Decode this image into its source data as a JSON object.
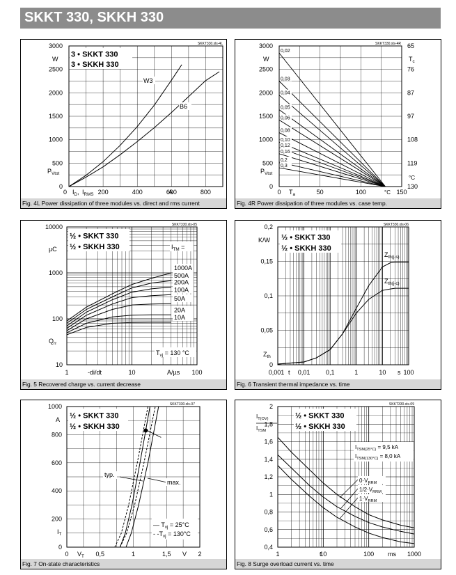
{
  "page_title": "SKKT 330, SKKH 330",
  "chart_data": [
    {
      "id": "fig4L",
      "type": "line",
      "caption": "Fig. 4L Power dissipation of three modules vs. direct and rms current",
      "file_tag": "SKKT330.xls-4L",
      "legend": [
        "3 • SKKT 330",
        "3 • SKKH 330"
      ],
      "xlim": [
        0,
        900
      ],
      "ylim": [
        0,
        3000
      ],
      "x_ticks": [
        "0",
        "200",
        "400",
        "600",
        "800"
      ],
      "y_ticks": [
        "0",
        "500",
        "1000",
        "1500",
        "2000",
        "2500",
        "3000"
      ],
      "y_unit": "W",
      "x_unit": "A",
      "ylabel_main": "P",
      "ylabel_sub": "Vtot",
      "xlabel_a": "I",
      "xlabel_a_sub": "D",
      "xlabel_sep": ",",
      "xlabel_b": "I",
      "xlabel_b_sub": "RMS",
      "series": [
        {
          "name": "W3",
          "x": [
            0,
            100,
            200,
            300,
            400,
            500,
            600,
            660
          ],
          "y": [
            0,
            240,
            530,
            880,
            1280,
            1740,
            2270,
            2600
          ]
        },
        {
          "name": "B6",
          "x": [
            0,
            100,
            200,
            300,
            400,
            500,
            600,
            700,
            800,
            880
          ],
          "y": [
            0,
            200,
            420,
            680,
            960,
            1260,
            1580,
            1920,
            2260,
            2450
          ]
        }
      ]
    },
    {
      "id": "fig4R",
      "type": "line",
      "caption": "Fig. 4R Power dissipation of three modules vs. case temp.",
      "file_tag": "SKKT330.xls-4R",
      "xlim": [
        0,
        150
      ],
      "ylim": [
        0,
        3000
      ],
      "x_ticks": [
        "0",
        "50",
        "100",
        "150"
      ],
      "y_ticks": [
        "0",
        "500",
        "1000",
        "1500",
        "2000",
        "2500",
        "3000"
      ],
      "y_unit": "W",
      "x_unit": "°C",
      "ylabel_main": "P",
      "ylabel_sub": "Vtot",
      "xlabel_main": "T",
      "xlabel_sub": "a",
      "right_axis_label": "T",
      "right_axis_label_sub": "c",
      "right_axis_ticks": [
        "130",
        "119",
        "108",
        "97",
        "87",
        "76",
        "65"
      ],
      "right_axis_unit": "°C",
      "rth_labels": [
        "0,02",
        "0,03",
        "0,04",
        "0,05",
        "0,06",
        "0,08",
        "0,10",
        "0,12",
        "0,16",
        "0,2",
        "0,3"
      ],
      "rth_y": [
        2850,
        2250,
        1950,
        1640,
        1420,
        1150,
        950,
        830,
        700,
        520,
        400
      ],
      "converge": {
        "x": 130,
        "y": 0
      }
    },
    {
      "id": "fig5",
      "type": "line",
      "caption": "Fig. 5 Recovered charge vs. current decrease",
      "file_tag": "SKKT330.xls-05",
      "legend": [
        "½ • SKKT 330",
        "½ • SKKH 330"
      ],
      "xscale": "log",
      "yscale": "log",
      "xlim": [
        1,
        100
      ],
      "ylim": [
        10,
        10000
      ],
      "x_ticks": [
        "1",
        "10",
        "100"
      ],
      "y_ticks": [
        "10",
        "100",
        "1000",
        "10000"
      ],
      "y_unit": "µC",
      "x_unit": "A/µs",
      "xlabel": "-di",
      "xlabel_tail": "/dt",
      "ylabel_main": "Q",
      "ylabel_sub": "rr",
      "series_title": "I",
      "series_title_sub": "TM",
      "series_title_tail": " =",
      "condition_main": "T",
      "condition_sub": "vj",
      "condition_tail": " = 130 °C",
      "series": [
        {
          "name": "1000A",
          "x": [
            1,
            2,
            5,
            10,
            20,
            40
          ],
          "y": [
            90,
            180,
            350,
            560,
            760,
            1000
          ]
        },
        {
          "name": "500A",
          "x": [
            1,
            2,
            5,
            10,
            20,
            40
          ],
          "y": [
            80,
            160,
            300,
            470,
            600,
            680
          ]
        },
        {
          "name": "200A",
          "x": [
            1,
            2,
            5,
            10,
            20,
            40
          ],
          "y": [
            70,
            140,
            260,
            380,
            450,
            490
          ]
        },
        {
          "name": "100A",
          "x": [
            1,
            2,
            5,
            10,
            20,
            40
          ],
          "y": [
            62,
            120,
            210,
            290,
            320,
            335
          ]
        },
        {
          "name": "50A",
          "x": [
            1,
            2,
            5,
            10,
            20,
            40
          ],
          "y": [
            55,
            100,
            160,
            200,
            210,
            215
          ]
        },
        {
          "name": "20A",
          "x": [
            1,
            2,
            5,
            10,
            20,
            40
          ],
          "y": [
            50,
            80,
            110,
            120,
            122,
            122
          ]
        },
        {
          "name": "10A",
          "x": [
            1,
            2,
            5,
            10,
            20,
            40
          ],
          "y": [
            45,
            65,
            80,
            83,
            84,
            84
          ]
        }
      ]
    },
    {
      "id": "fig6",
      "type": "line",
      "caption": "Fig. 6 Transient thermal impedance vs. time",
      "file_tag": "SKKT330.xls-06",
      "legend": [
        "½ • SKKT 330",
        "½ • SKKH 330"
      ],
      "xscale": "log",
      "xlim": [
        0.001,
        100
      ],
      "ylim": [
        0,
        0.2
      ],
      "x_ticks": [
        "0,001",
        "0,01",
        "0,1",
        "1",
        "10",
        "100"
      ],
      "y_ticks": [
        "0",
        "0,05",
        "0,1",
        "0,15",
        "0,2"
      ],
      "y_unit": "K/W",
      "x_unit": "s",
      "x_axis_letter": "t",
      "ylabel_main": "Z",
      "ylabel_sub": "th",
      "series": [
        {
          "name": "Z",
          "name_sub": "th(j-s)",
          "x": [
            0.001,
            0.01,
            0.03,
            0.1,
            0.3,
            1,
            3,
            10,
            20,
            30,
            100
          ],
          "y": [
            0.001,
            0.004,
            0.01,
            0.022,
            0.045,
            0.082,
            0.115,
            0.142,
            0.148,
            0.149,
            0.149
          ]
        },
        {
          "name": "Z",
          "name_sub": "th(j-c)",
          "x": [
            0.001,
            0.01,
            0.03,
            0.1,
            0.3,
            1,
            3,
            10,
            20,
            30,
            100
          ],
          "y": [
            0.001,
            0.004,
            0.01,
            0.022,
            0.045,
            0.075,
            0.095,
            0.108,
            0.11,
            0.111,
            0.111
          ]
        }
      ]
    },
    {
      "id": "fig7",
      "type": "line",
      "caption": "Fig. 7 On-state characteristics",
      "file_tag": "SKKT330.xls-07",
      "legend": [
        "½ • SKKT 330",
        "½ • SKKH 330"
      ],
      "xlim": [
        0,
        2
      ],
      "ylim": [
        0,
        1000
      ],
      "x_ticks": [
        "0",
        "0,5",
        "1",
        "1,5",
        "2"
      ],
      "y_ticks": [
        "0",
        "200",
        "400",
        "600",
        "800",
        "1000"
      ],
      "y_unit": "A",
      "x_unit": "V",
      "xlabel_main": "V",
      "xlabel_sub": "T",
      "ylabel_main": "I",
      "ylabel_sub": "T",
      "labels": [
        "typ.",
        "max."
      ],
      "series_legend": [
        {
          "pre": "— T",
          "sub": "vj",
          "tail": " =  25°C"
        },
        {
          "pre": "- -T",
          "sub": "vj",
          "tail": " = 130°C"
        }
      ],
      "series": [
        {
          "name": "typ 25°C",
          "style": "solid",
          "x": [
            0.8,
            0.88,
            0.98,
            1.1,
            1.25
          ],
          "y": [
            0,
            100,
            300,
            600,
            1000
          ]
        },
        {
          "name": "typ 130°C",
          "style": "dashed",
          "x": [
            0.72,
            0.82,
            0.93,
            1.06,
            1.22
          ],
          "y": [
            0,
            100,
            300,
            600,
            1000
          ]
        },
        {
          "name": "max 25°C",
          "style": "solid",
          "x": [
            0.89,
            0.97,
            1.08,
            1.22,
            1.38
          ],
          "y": [
            0,
            100,
            300,
            600,
            1000
          ]
        },
        {
          "name": "max 130°C",
          "style": "dashed",
          "x": [
            0.8,
            0.9,
            1.02,
            1.16,
            1.33
          ],
          "y": [
            0,
            100,
            300,
            600,
            1000
          ]
        }
      ]
    },
    {
      "id": "fig8",
      "type": "line",
      "caption": "Fig. 8 Surge overload current vs. time",
      "file_tag": "SKKT330.xls-09",
      "legend": [
        "½ • SKKT 330",
        "½ • SKKH 330"
      ],
      "xscale": "log",
      "xlim": [
        1,
        1000
      ],
      "ylim": [
        0.4,
        2
      ],
      "x_ticks": [
        "1",
        "10",
        "100",
        "1000"
      ],
      "y_ticks": [
        "0,4",
        "0,6",
        "0,8",
        "1",
        "1,2",
        "1,4",
        "1,6",
        "1,8",
        "2"
      ],
      "x_unit": "ms",
      "x_axis_letter": "t",
      "ylabel_top": "I",
      "ylabel_top_sub": "T(OV)",
      "ylabel_bottom": "I",
      "ylabel_bottom_sub": "TSM",
      "conditions": [
        {
          "main": "I",
          "sub": "TSM(25°C)",
          "tail": " = 9,5 kA"
        },
        {
          "main": "I",
          "sub": "TSM(130°C)",
          "tail": " = 8,0 kA"
        }
      ],
      "series": [
        {
          "name": "0·V",
          "name_sub": "RRM",
          "x": [
            1,
            2,
            5,
            10,
            20,
            50,
            100,
            200,
            500,
            1000
          ],
          "y": [
            1.65,
            1.48,
            1.28,
            1.13,
            1.0,
            0.86,
            0.77,
            0.71,
            0.65,
            0.62
          ]
        },
        {
          "name": "1/2·V",
          "name_sub": "RRM",
          "x": [
            1,
            2,
            5,
            10,
            20,
            50,
            100,
            200,
            500,
            1000
          ],
          "y": [
            1.45,
            1.3,
            1.1,
            0.97,
            0.86,
            0.75,
            0.68,
            0.63,
            0.58,
            0.55
          ]
        },
        {
          "name": "1·V",
          "name_sub": "RRM",
          "x": [
            1,
            2,
            5,
            10,
            20,
            50,
            100,
            200,
            500,
            1000
          ],
          "y": [
            1.33,
            1.17,
            0.98,
            0.85,
            0.74,
            0.63,
            0.56,
            0.51,
            0.46,
            0.44
          ]
        }
      ]
    }
  ]
}
